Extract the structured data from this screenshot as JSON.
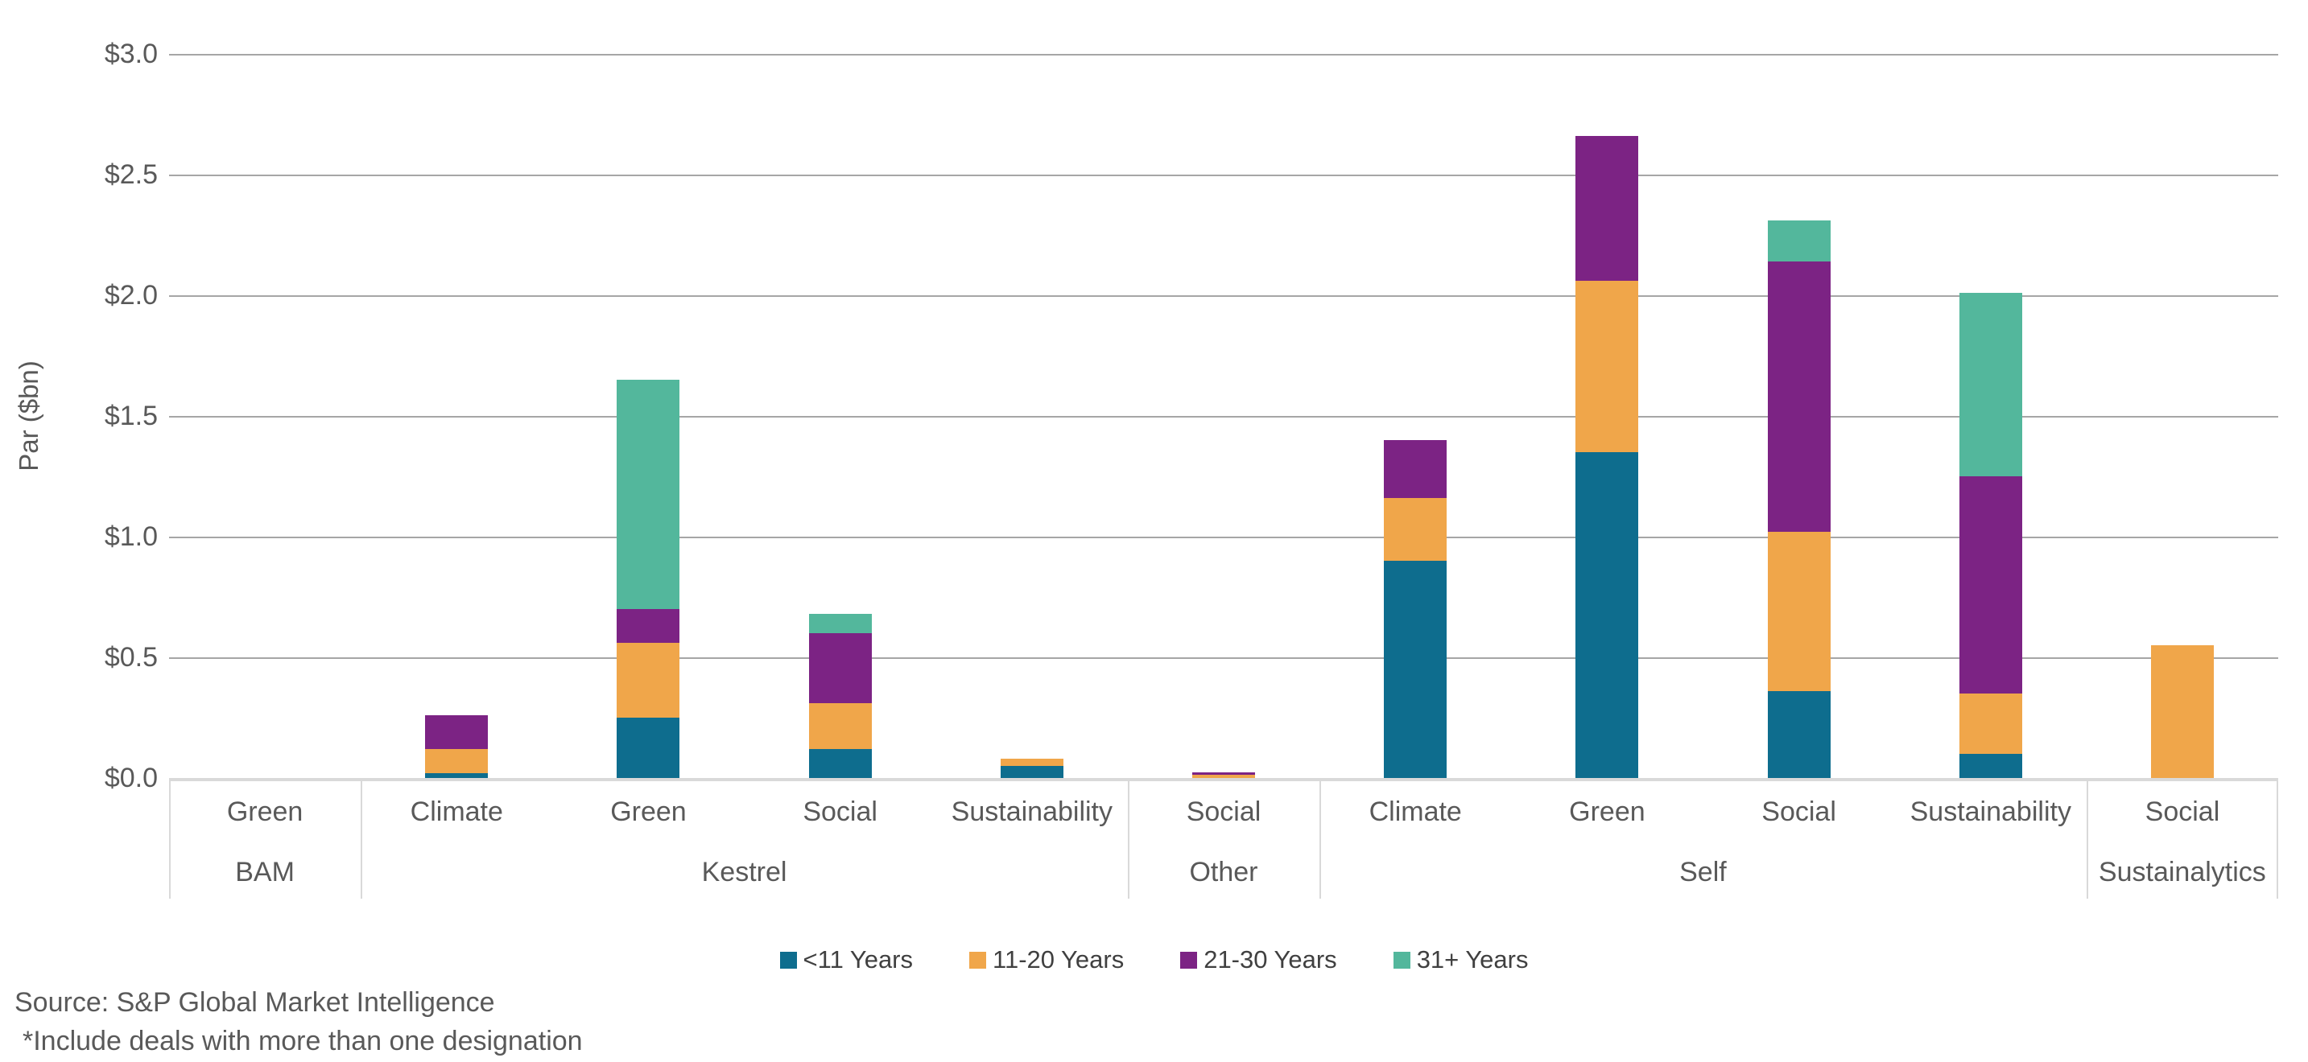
{
  "chart": {
    "y_axis_title": "Par ($bn)",
    "y_ticks": [
      "$3.0",
      "$2.5",
      "$2.0",
      "$1.5",
      "$1.0",
      "$0.5",
      "$0.0"
    ],
    "source_line1": "Source: S&P Global Market Intelligence",
    "source_line2": "*Include deals with more than one designation"
  },
  "chart_data": {
    "type": "bar",
    "stacked": true,
    "title": "",
    "xlabel": "",
    "ylabel": "Par ($bn)",
    "ylim": [
      0,
      3.0
    ],
    "y_tick_step": 0.5,
    "grid": true,
    "legend_position": "bottom",
    "groups": [
      {
        "label": "BAM",
        "categories": [
          "Green"
        ]
      },
      {
        "label": "Kestrel",
        "categories": [
          "Climate",
          "Green",
          "Social",
          "Sustainability"
        ]
      },
      {
        "label": "Other",
        "categories": [
          "Social"
        ]
      },
      {
        "label": "Self",
        "categories": [
          "Climate",
          "Green",
          "Social",
          "Sustainability"
        ]
      },
      {
        "label": "Sustainalytics",
        "categories": [
          "Social"
        ]
      }
    ],
    "categories": [
      "Green",
      "Climate",
      "Green",
      "Social",
      "Sustainability",
      "Social",
      "Climate",
      "Green",
      "Social",
      "Sustainability",
      "Social"
    ],
    "series": [
      {
        "name": "<11 Years",
        "color": "#0e6d8e",
        "values": [
          0,
          0.02,
          0.25,
          0.12,
          0.05,
          0,
          0.9,
          1.35,
          0.36,
          0.1,
          0
        ]
      },
      {
        "name": "11-20 Years",
        "color": "#f0a64a",
        "values": [
          0,
          0.1,
          0.31,
          0.19,
          0.03,
          0.015,
          0.26,
          0.71,
          0.66,
          0.25,
          0.55
        ]
      },
      {
        "name": "21-30 Years",
        "color": "#7c2384",
        "values": [
          0,
          0.14,
          0.14,
          0.29,
          0,
          0.008,
          0.24,
          0.6,
          1.12,
          0.9,
          0
        ]
      },
      {
        "name": "31+ Years",
        "color": "#53b79c",
        "values": [
          0,
          0,
          0.95,
          0.08,
          0,
          0,
          0,
          0,
          0.17,
          0.76,
          0
        ]
      }
    ],
    "totals": [
      0,
      0.26,
      1.65,
      0.68,
      0.08,
      0.02,
      1.4,
      2.66,
      2.31,
      2.01,
      0.55
    ],
    "colors": {
      "gridline": "#a6a6a6",
      "axis_line": "#d9d9d9",
      "label_text": "#595959"
    }
  }
}
